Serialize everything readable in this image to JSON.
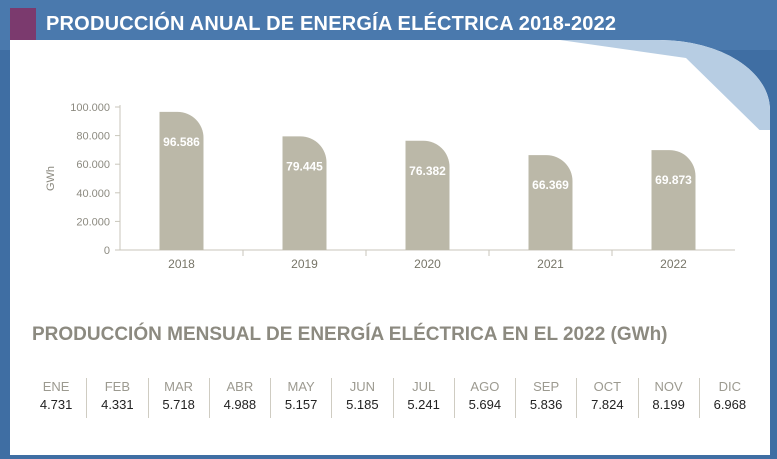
{
  "header": {
    "title": "PRODUCCIÓN ANUAL DE ENERGÍA ELÉCTRICA 2018-2022"
  },
  "chart_data": {
    "type": "bar",
    "title": "PRODUCCIÓN ANUAL DE ENERGÍA ELÉCTRICA 2018-2022",
    "categories": [
      "2018",
      "2019",
      "2020",
      "2021",
      "2022"
    ],
    "values": [
      96586,
      79445,
      76382,
      66369,
      69873
    ],
    "value_labels": [
      "96.586",
      "79.445",
      "76.382",
      "66.369",
      "69.873"
    ],
    "ylabel": "GWh",
    "ylim": [
      0,
      100000
    ],
    "yticks": [
      "0",
      "20.000",
      "40.000",
      "60.000",
      "80.000",
      "100.000"
    ],
    "grid": false,
    "bar_color": "#bbb8a8"
  },
  "monthly": {
    "title": "PRODUCCIÓN MENSUAL DE ENERGÍA ELÉCTRICA EN EL 2022 (GWh)",
    "months": [
      "ENE",
      "FEB",
      "MAR",
      "ABR",
      "MAY",
      "JUN",
      "JUL",
      "AGO",
      "SEP",
      "OCT",
      "NOV",
      "DIC"
    ],
    "values": [
      "4.731",
      "4.331",
      "5.718",
      "4.988",
      "5.157",
      "5.185",
      "5.241",
      "5.694",
      "5.836",
      "7.824",
      "8.199",
      "6.968"
    ]
  },
  "colors": {
    "background": "#3f6ea3",
    "accent": "#7b3a6e",
    "bar": "#bbb8a8",
    "muted_text": "#8c8a80"
  }
}
